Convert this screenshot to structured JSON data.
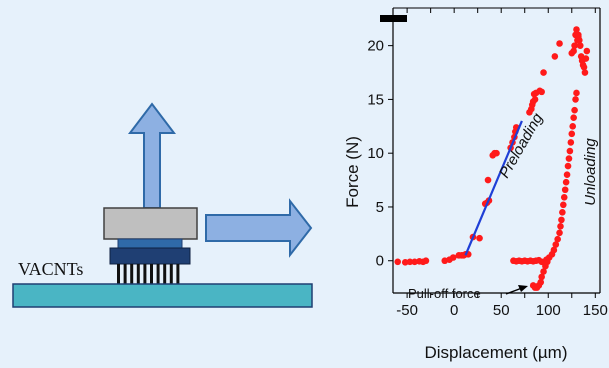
{
  "schematic": {
    "substrate_label": "VACNTs",
    "colors": {
      "substrate": "#4ab5c4",
      "plate": "#bfbfbf",
      "holder_light": "#2f6aa8",
      "holder_dark": "#1f3f73",
      "arrow": "#8db0e2"
    }
  },
  "chart_data": {
    "type": "scatter",
    "xlabel": "Displacement (µm)",
    "ylabel": "Force (N)",
    "xlim": [
      -65,
      155
    ],
    "ylim": [
      -3,
      23.5
    ],
    "xticks": [
      -50,
      -25,
      0,
      25,
      50,
      75,
      100,
      125,
      150
    ],
    "xtick_labels": [
      "-50",
      "-25",
      "0",
      "25",
      "50",
      "75",
      "100",
      "125",
      "150"
    ],
    "yticks": [
      0,
      5,
      10,
      15,
      20
    ],
    "ytick_labels": [
      "0",
      "5",
      "10",
      "15",
      "20"
    ],
    "grid": false,
    "point_color": "#ff1a1a",
    "fit_color": "#1f3fd6",
    "annotations": [
      "Preloading",
      "Unloading",
      "Pull-off force"
    ],
    "fit_line": {
      "x": [
        12,
        72
      ],
      "y": [
        0.5,
        13
      ]
    },
    "series": [
      {
        "values": [
          [
            -60,
            -0.1
          ],
          [
            -52,
            -0.15
          ],
          [
            -47,
            -0.1
          ],
          [
            -42,
            -0.1
          ],
          [
            -37,
            -0.05
          ],
          [
            -33,
            -0.1
          ],
          [
            -30,
            0
          ],
          [
            -10,
            0
          ],
          [
            -5,
            0.1
          ],
          [
            -1,
            0.3
          ],
          [
            5,
            0.5
          ],
          [
            8,
            0.5
          ],
          [
            10,
            0.5
          ],
          [
            12,
            0.6
          ],
          [
            15,
            0.6
          ],
          [
            20,
            2.2
          ],
          [
            27,
            2.1
          ],
          [
            33,
            5.3
          ],
          [
            35,
            5.4
          ],
          [
            37,
            5.6
          ],
          [
            36,
            7.5
          ],
          [
            41,
            9.8
          ],
          [
            43,
            10.0
          ],
          [
            45,
            10.0
          ],
          [
            60,
            10.5
          ],
          [
            62,
            11.0
          ],
          [
            64,
            11.5
          ],
          [
            65,
            12.0
          ],
          [
            66,
            12.4
          ],
          [
            80,
            13.8
          ],
          [
            82,
            14.1
          ],
          [
            83,
            14.5
          ],
          [
            84,
            14.8
          ],
          [
            86,
            15.0
          ],
          [
            85,
            15.5
          ],
          [
            87,
            15.6
          ],
          [
            91,
            15.8
          ],
          [
            93,
            15.7
          ],
          [
            95,
            17.5
          ],
          [
            107,
            19.0
          ],
          [
            112,
            20.2
          ],
          [
            125,
            19.3
          ],
          [
            127,
            19.5
          ],
          [
            128,
            20.0
          ],
          [
            129,
            21.0
          ],
          [
            130,
            21.5
          ],
          [
            132,
            21.0
          ],
          [
            133,
            20.5
          ],
          [
            134,
            20.0
          ],
          [
            135,
            19.0
          ],
          [
            136,
            18.6
          ],
          [
            137,
            18.2
          ],
          [
            138,
            18.0
          ],
          [
            139,
            17.5
          ],
          [
            140,
            18.8
          ],
          [
            141,
            19.5
          ],
          [
            132,
            20.8
          ],
          [
            131,
            20.5
          ],
          [
            130,
            15.6
          ],
          [
            129,
            15.0
          ],
          [
            128,
            14.0
          ],
          [
            127,
            13.3
          ],
          [
            126,
            12.5
          ],
          [
            125,
            11.8
          ],
          [
            124,
            11.0
          ],
          [
            123,
            10.2
          ],
          [
            122,
            9.5
          ],
          [
            121,
            8.8
          ],
          [
            120,
            8.0
          ],
          [
            119,
            7.3
          ],
          [
            118,
            6.6
          ],
          [
            117,
            5.9
          ],
          [
            116,
            5.2
          ],
          [
            115,
            4.5
          ],
          [
            114,
            3.8
          ],
          [
            113,
            3.2
          ],
          [
            112,
            2.6
          ],
          [
            110,
            2.0
          ],
          [
            108,
            1.5
          ],
          [
            106,
            1.0
          ],
          [
            104,
            0.6
          ],
          [
            101,
            0.3
          ],
          [
            98,
            0.1
          ],
          [
            99,
            -0.1
          ],
          [
            97,
            -0.5
          ],
          [
            95,
            -1.0
          ],
          [
            93,
            -1.5
          ],
          [
            92,
            -2.0
          ],
          [
            90,
            -2.3
          ],
          [
            88,
            -2.5
          ],
          [
            86,
            -2.5
          ],
          [
            84,
            -2.3
          ],
          [
            63,
            0
          ],
          [
            66,
            -0.05
          ],
          [
            69,
            0
          ],
          [
            72,
            -0.05
          ],
          [
            75,
            0
          ],
          [
            78,
            -0.05
          ],
          [
            81,
            0
          ],
          [
            84,
            -0.05
          ],
          [
            87,
            0
          ],
          [
            90,
            0.05
          ],
          [
            93,
            -0.1
          ],
          [
            96,
            -0.15
          ]
        ]
      }
    ]
  }
}
